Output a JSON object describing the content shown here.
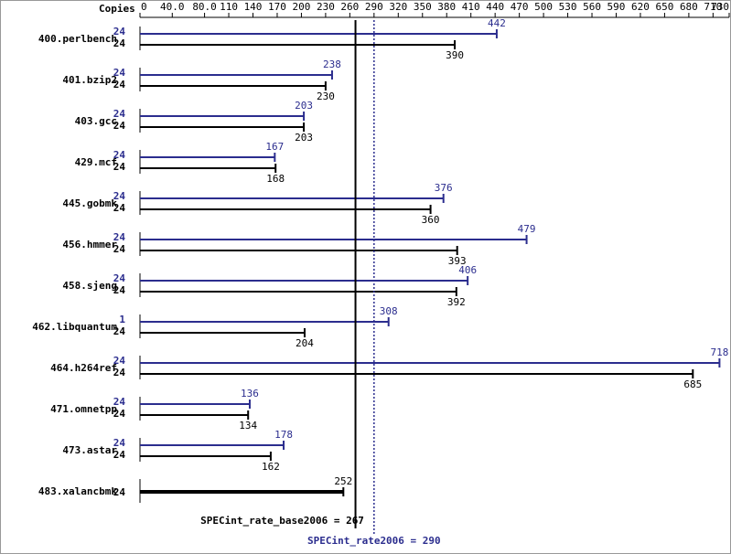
{
  "chart_data": {
    "type": "bar",
    "copies_label": "Copies",
    "categories": [
      "400.perlbench",
      "401.bzip2",
      "403.gcc",
      "429.mcf",
      "445.gobmk",
      "456.hmmer",
      "458.sjeng",
      "462.libquantum",
      "464.h264ref",
      "471.omnetpp",
      "473.astar",
      "483.xalancbmk"
    ],
    "series": [
      {
        "color": "#2b2d8e",
        "copies": [
          24,
          24,
          24,
          24,
          24,
          24,
          24,
          1,
          24,
          24,
          24,
          null
        ],
        "values": [
          442,
          238,
          203,
          167,
          376,
          479,
          406,
          308,
          718,
          136,
          178,
          null
        ]
      },
      {
        "color": "#000000",
        "copies": [
          24,
          24,
          24,
          24,
          24,
          24,
          24,
          24,
          24,
          24,
          24,
          24
        ],
        "values": [
          390,
          230,
          203,
          168,
          360,
          393,
          392,
          204,
          685,
          134,
          162,
          252
        ]
      }
    ],
    "xlim": [
      0,
      730
    ],
    "xticks": [
      0,
      {
        "value": 40,
        "label": "40.0"
      },
      {
        "value": 80,
        "label": "80.0"
      },
      110,
      140,
      170,
      200,
      230,
      260,
      290,
      320,
      350,
      380,
      410,
      440,
      470,
      500,
      530,
      560,
      590,
      620,
      650,
      680,
      710,
      730
    ],
    "reference_lines": [
      {
        "value": 267,
        "label": "SPECint_rate_base2006 = 267",
        "color": "#000000",
        "style": "solid"
      },
      {
        "value": 290,
        "label": "SPECint_rate2006 = 290",
        "color": "#2b2d8e",
        "style": "dotted"
      }
    ]
  }
}
